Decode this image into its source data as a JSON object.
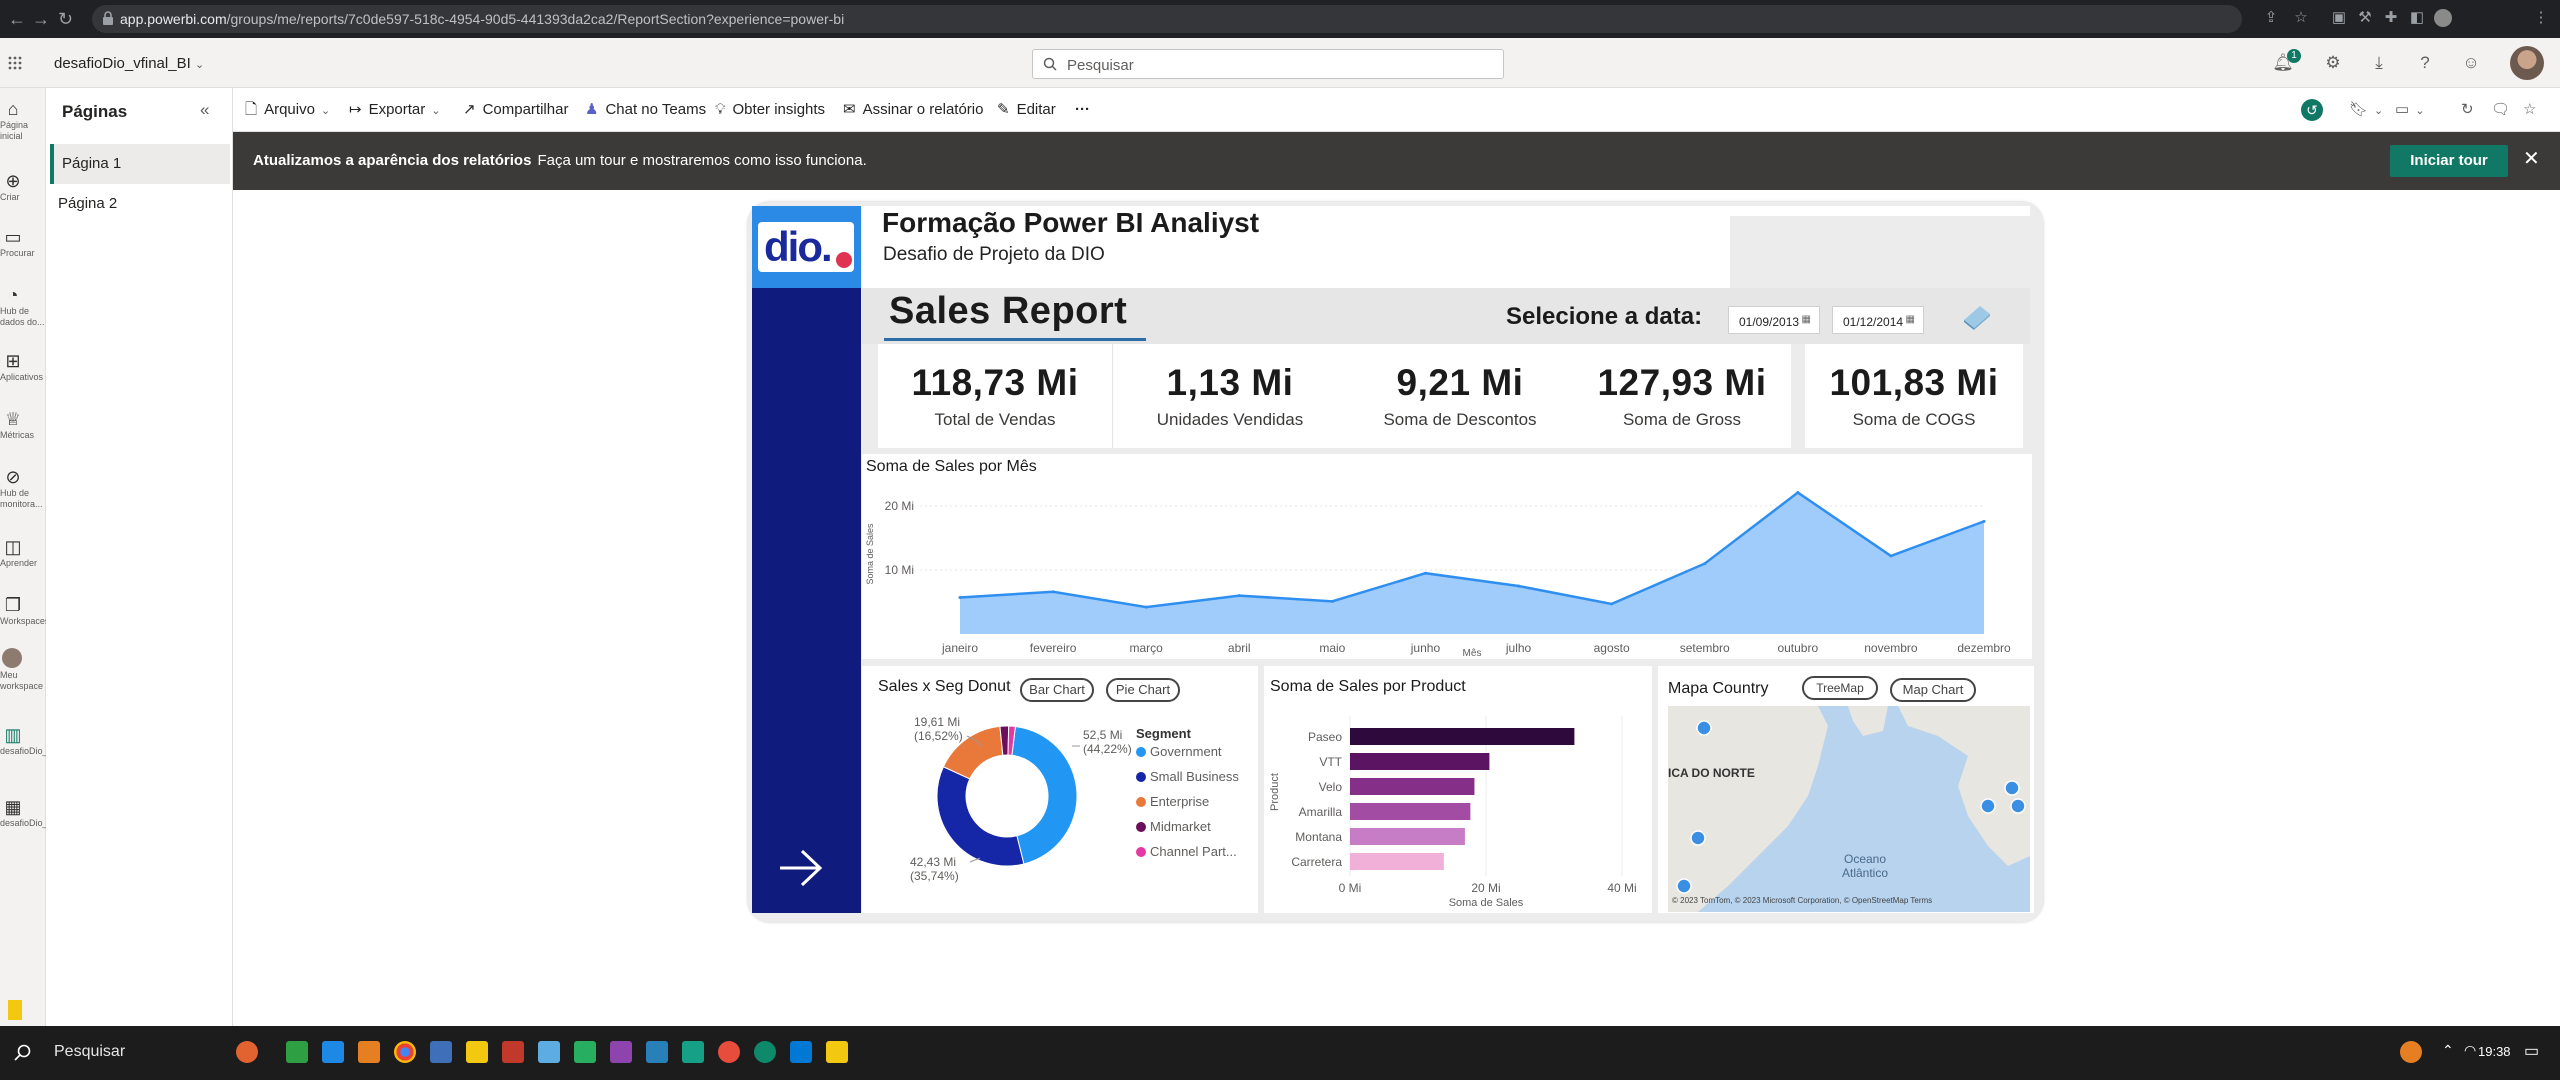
{
  "browser": {
    "url_host": "app.powerbi.com",
    "url_path": "/groups/me/reports/7c0de597-518c-4954-90d5-441393da2ca2/ReportSection?experience=power-bi"
  },
  "app": {
    "workspace": "desafioDio_vfinal_BI",
    "search_placeholder": "Pesquisar",
    "notif_count": "1"
  },
  "rail": [
    {
      "label": "Página inicial"
    },
    {
      "label": "Criar"
    },
    {
      "label": "Procurar"
    },
    {
      "label": "Hub de dados do..."
    },
    {
      "label": "Aplicativos"
    },
    {
      "label": "Métricas"
    },
    {
      "label": "Hub de monitora..."
    },
    {
      "label": "Aprender"
    },
    {
      "label": "Workspaces"
    },
    {
      "label": "Meu workspace"
    },
    {
      "label": "desafioDio_vfinal_BI"
    },
    {
      "label": "desafioDio_vfinal_BI"
    }
  ],
  "pages_pane": {
    "title": "Páginas",
    "items": [
      "Página 1",
      "Página 2"
    ]
  },
  "toolbar": {
    "file": "Arquivo",
    "export": "Exportar",
    "share": "Compartilhar",
    "teams": "Chat no Teams",
    "insights": "Obter insights",
    "subscribe": "Assinar o relatório",
    "edit": "Editar",
    "more": "···"
  },
  "banner": {
    "bold": "Atualizamos a aparência dos relatórios",
    "text": "Faça um tour e mostraremos como isso funciona.",
    "button": "Iniciar tour"
  },
  "report": {
    "title": "Formação Power BI Analiyst",
    "subtitle": "Desafio de Projeto da DIO",
    "logo_text": "dio.",
    "sales_report": "Sales Report",
    "select_date": "Selecione a data:",
    "date_from": "01/09/2013",
    "date_to": "01/12/2014",
    "kpis": [
      {
        "value": "118,73 Mi",
        "label": "Total de Vendas"
      },
      {
        "value": "1,13 Mi",
        "label": "Unidades Vendidas"
      },
      {
        "value": "9,21 Mi",
        "label": "Soma de Descontos"
      },
      {
        "value": "127,93 Mi",
        "label": "Soma de Gross"
      },
      {
        "value": "101,83 Mi",
        "label": "Soma de COGS"
      }
    ],
    "area_title": "Soma de Sales por Mês",
    "area_ylabel": "Soma de Sales",
    "area_xlabel": "Mês",
    "donut_title": "Sales x Seg Donut",
    "donut_btn_bar": "Bar Chart",
    "donut_btn_pie": "Pie Chart",
    "donut_legend_title": "Segment",
    "donut_label_a": "52,5 Mi",
    "donut_label_a2": "(44,22%)",
    "donut_label_b": "42,43 Mi",
    "donut_label_b2": "(35,74%)",
    "donut_label_c": "19,61 Mi",
    "donut_label_c2": "(16,52%)",
    "bar_title": "Soma de Sales por Product",
    "bar_ylabel": "Product",
    "bar_xlabel": "Soma de Sales",
    "map_title": "Mapa Country",
    "map_btn_tree": "TreeMap",
    "map_btn_map": "Map Chart",
    "map_label_na": "ICA DO NORTE",
    "map_label_ocean": "Oceano",
    "map_label_ocean2": "Atlântico",
    "map_attrib": "© 2023 TomTom, © 2023 Microsoft Corporation, © OpenStreetMap  Terms"
  },
  "chart_data": [
    {
      "type": "area",
      "title": "Soma de Sales por Mês",
      "xlabel": "Mês",
      "ylabel": "Soma de Sales",
      "categories": [
        "janeiro",
        "fevereiro",
        "março",
        "abril",
        "maio",
        "junho",
        "julho",
        "agosto",
        "setembro",
        "outubro",
        "novembro",
        "dezembro"
      ],
      "values": [
        5.7,
        6.6,
        4.2,
        6.0,
        5.1,
        9.5,
        7.5,
        4.7,
        11.0,
        22.1,
        12.2,
        17.6
      ],
      "yticks": [
        "10 Mi",
        "20 Mi"
      ],
      "ylim": [
        0,
        25
      ],
      "color": "#9fccfa",
      "line_color": "#2f8ff0"
    },
    {
      "type": "pie",
      "title": "Sales x Seg Donut",
      "legend_title": "Segment",
      "labels": [
        "Government",
        "Small Business",
        "Enterprise",
        "Midmarket",
        "Channel Part..."
      ],
      "values": [
        52.5,
        42.43,
        19.61,
        2.38,
        1.81
      ],
      "colors": [
        "#2196f3",
        "#1526a6",
        "#e8793a",
        "#6b0f5a",
        "#e23aa2"
      ]
    },
    {
      "type": "bar",
      "title": "Soma de Sales por Product",
      "xlabel": "Soma de Sales",
      "ylabel": "Product",
      "categories": [
        "Paseo",
        "VTT",
        "Velo",
        "Amarilla",
        "Montana",
        "Carretera"
      ],
      "values": [
        33.0,
        20.5,
        18.3,
        17.7,
        16.9,
        13.8
      ],
      "xticks": [
        "0 Mi",
        "20 Mi",
        "40 Mi"
      ],
      "xlim": [
        0,
        40
      ],
      "colors": [
        "#2e0a3c",
        "#5b1462",
        "#862f88",
        "#a24ca3",
        "#c77dc6",
        "#f0b0d8"
      ]
    }
  ],
  "taskbar": {
    "search": "Pesquisar",
    "time": "19:38"
  }
}
